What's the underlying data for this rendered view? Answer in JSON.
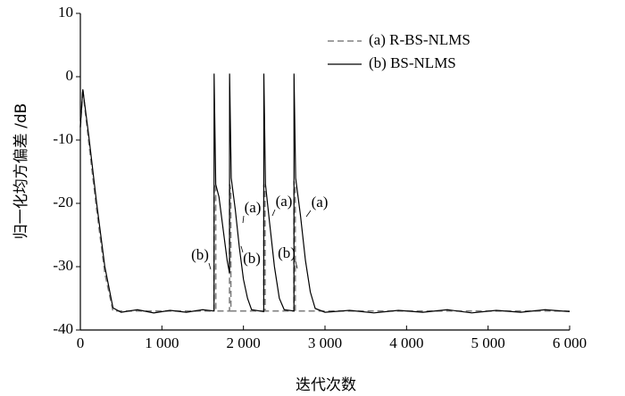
{
  "chart_data": {
    "type": "line",
    "xlabel": "迭代次数",
    "ylabel": "归一化均方偏差 /dB",
    "xlim": [
      0,
      6000
    ],
    "ylim": [
      -40,
      10
    ],
    "xticks": [
      0,
      {
        "value": 1000,
        "label": "1 000"
      },
      {
        "value": 2000,
        "label": "2 000"
      },
      {
        "value": 3000,
        "label": "3 000"
      },
      {
        "value": 4000,
        "label": "4 000"
      },
      {
        "value": 5000,
        "label": "5 000"
      },
      {
        "value": 6000,
        "label": "6 000"
      }
    ],
    "yticks": [
      10,
      0,
      -10,
      -20,
      -30,
      -40
    ],
    "legend": "top-right",
    "annotations": [
      "(a)",
      "(a)",
      "(a)",
      "(b)",
      "(b)",
      "(b)"
    ],
    "series": [
      {
        "name": "(a) R-BS-NLMS",
        "color": "#808080",
        "dash": true,
        "x": [
          0,
          30,
          100,
          200,
          300,
          400,
          600,
          1639,
          1640,
          1660,
          1661,
          1829,
          1830,
          1845,
          1846,
          2249,
          2250,
          2265,
          2266,
          2619,
          2620,
          2635,
          2636,
          6000
        ],
        "values": [
          -8,
          -2,
          -10,
          -21,
          -31,
          -37,
          -37,
          -37,
          -17,
          -17.5,
          -37,
          -37,
          -17,
          -18,
          -37,
          -37,
          -17,
          -18,
          -37,
          -37,
          -16.5,
          -17.5,
          -37,
          -37
        ]
      },
      {
        "name": "(b) BS-NLMS",
        "color": "#000000",
        "dash": false,
        "x": [
          0,
          30,
          100,
          200,
          300,
          400,
          500,
          700,
          900,
          1100,
          1300,
          1500,
          1639,
          1640,
          1660,
          1700,
          1750,
          1800,
          1829,
          1830,
          1850,
          1900,
          1950,
          2000,
          2050,
          2100,
          2200,
          2249,
          2250,
          2270,
          2320,
          2380,
          2440,
          2500,
          2619,
          2620,
          2640,
          2700,
          2760,
          2820,
          2880,
          3000,
          3300,
          3600,
          3900,
          4200,
          4500,
          4800,
          5100,
          5400,
          5700,
          6000
        ],
        "values": [
          -8,
          -2,
          -9,
          -20,
          -30,
          -36.5,
          -37.2,
          -36.8,
          -37.3,
          -36.9,
          -37.2,
          -36.8,
          -37,
          0.5,
          -17,
          -19,
          -24,
          -29,
          -31,
          0.5,
          -16,
          -21,
          -27,
          -32,
          -35,
          -36.8,
          -37,
          -37.1,
          0.5,
          -17,
          -23,
          -30,
          -35,
          -36.8,
          -37,
          0.5,
          -16,
          -22,
          -29,
          -34,
          -36.6,
          -37.2,
          -36.9,
          -37.3,
          -36.9,
          -37.2,
          -36.8,
          -37.3,
          -36.9,
          -37.2,
          -36.8,
          -37.1
        ]
      }
    ]
  }
}
